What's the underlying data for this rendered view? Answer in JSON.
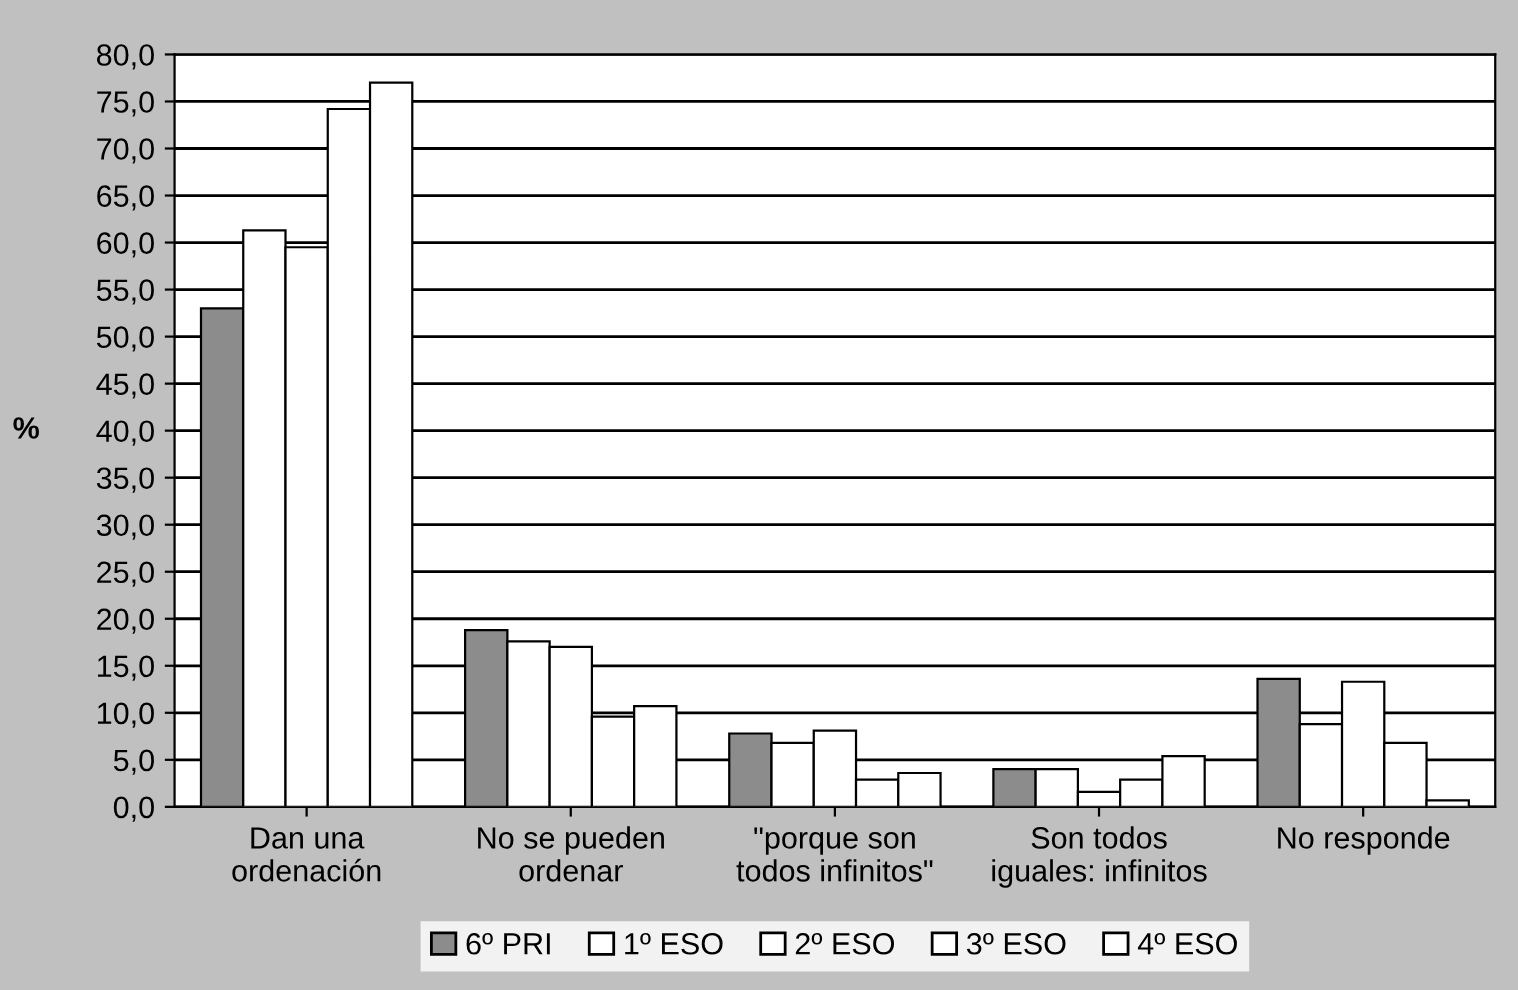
{
  "chart_data": {
    "type": "bar",
    "ylabel": "%",
    "categories": [
      "Dan una\nordenación",
      "No se pueden\nordenar",
      "\"porque son\ntodos infinitos\"",
      "Son todos\niguales: infinitos",
      "No responde"
    ],
    "series": [
      {
        "name": "6º PRI",
        "color": "#8c8c8c",
        "values": [
          53.0,
          18.8,
          7.8,
          4.0,
          13.6
        ]
      },
      {
        "name": "1º ESO",
        "color": "#ffffff",
        "values": [
          61.3,
          17.6,
          6.8,
          4.0,
          8.8
        ]
      },
      {
        "name": "2º ESO",
        "color": "#ffffff",
        "values": [
          59.5,
          17.0,
          8.1,
          1.6,
          13.3
        ]
      },
      {
        "name": "3º ESO",
        "color": "#ffffff",
        "values": [
          74.2,
          9.6,
          2.9,
          2.9,
          6.8
        ]
      },
      {
        "name": "4º ESO",
        "color": "#ffffff",
        "values": [
          77.0,
          10.7,
          3.6,
          5.4,
          0.7
        ]
      }
    ],
    "ylim": [
      0,
      80
    ],
    "yticks": [
      {
        "value": 0,
        "label": "0,0"
      },
      {
        "value": 5,
        "label": "5,0"
      },
      {
        "value": 10,
        "label": "10,0"
      },
      {
        "value": 15,
        "label": "15,0"
      },
      {
        "value": 20,
        "label": "20,0"
      },
      {
        "value": 25,
        "label": "25,0"
      },
      {
        "value": 30,
        "label": "30,0"
      },
      {
        "value": 35,
        "label": "35,0"
      },
      {
        "value": 40,
        "label": "40,0"
      },
      {
        "value": 45,
        "label": "45,0"
      },
      {
        "value": 50,
        "label": "50,0"
      },
      {
        "value": 55,
        "label": "55,0"
      },
      {
        "value": 60,
        "label": "60,0"
      },
      {
        "value": 65,
        "label": "65,0"
      },
      {
        "value": 70,
        "label": "70,0"
      },
      {
        "value": 75,
        "label": "75,0"
      },
      {
        "value": 80,
        "label": "80,0"
      }
    ],
    "grid": "y",
    "legend": "bottom"
  }
}
